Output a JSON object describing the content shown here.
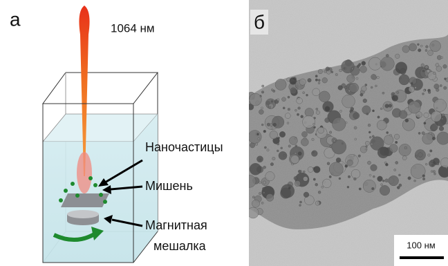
{
  "panel_a": {
    "label": "а",
    "laser": "1064 нм",
    "labels": {
      "nanoparticles": "Наночастицы",
      "target": "Мишень",
      "stirrer": [
        "Магнитная",
        "мешалка"
      ]
    }
  },
  "panel_b": {
    "label": "б",
    "scale_bar": "100 нм"
  }
}
